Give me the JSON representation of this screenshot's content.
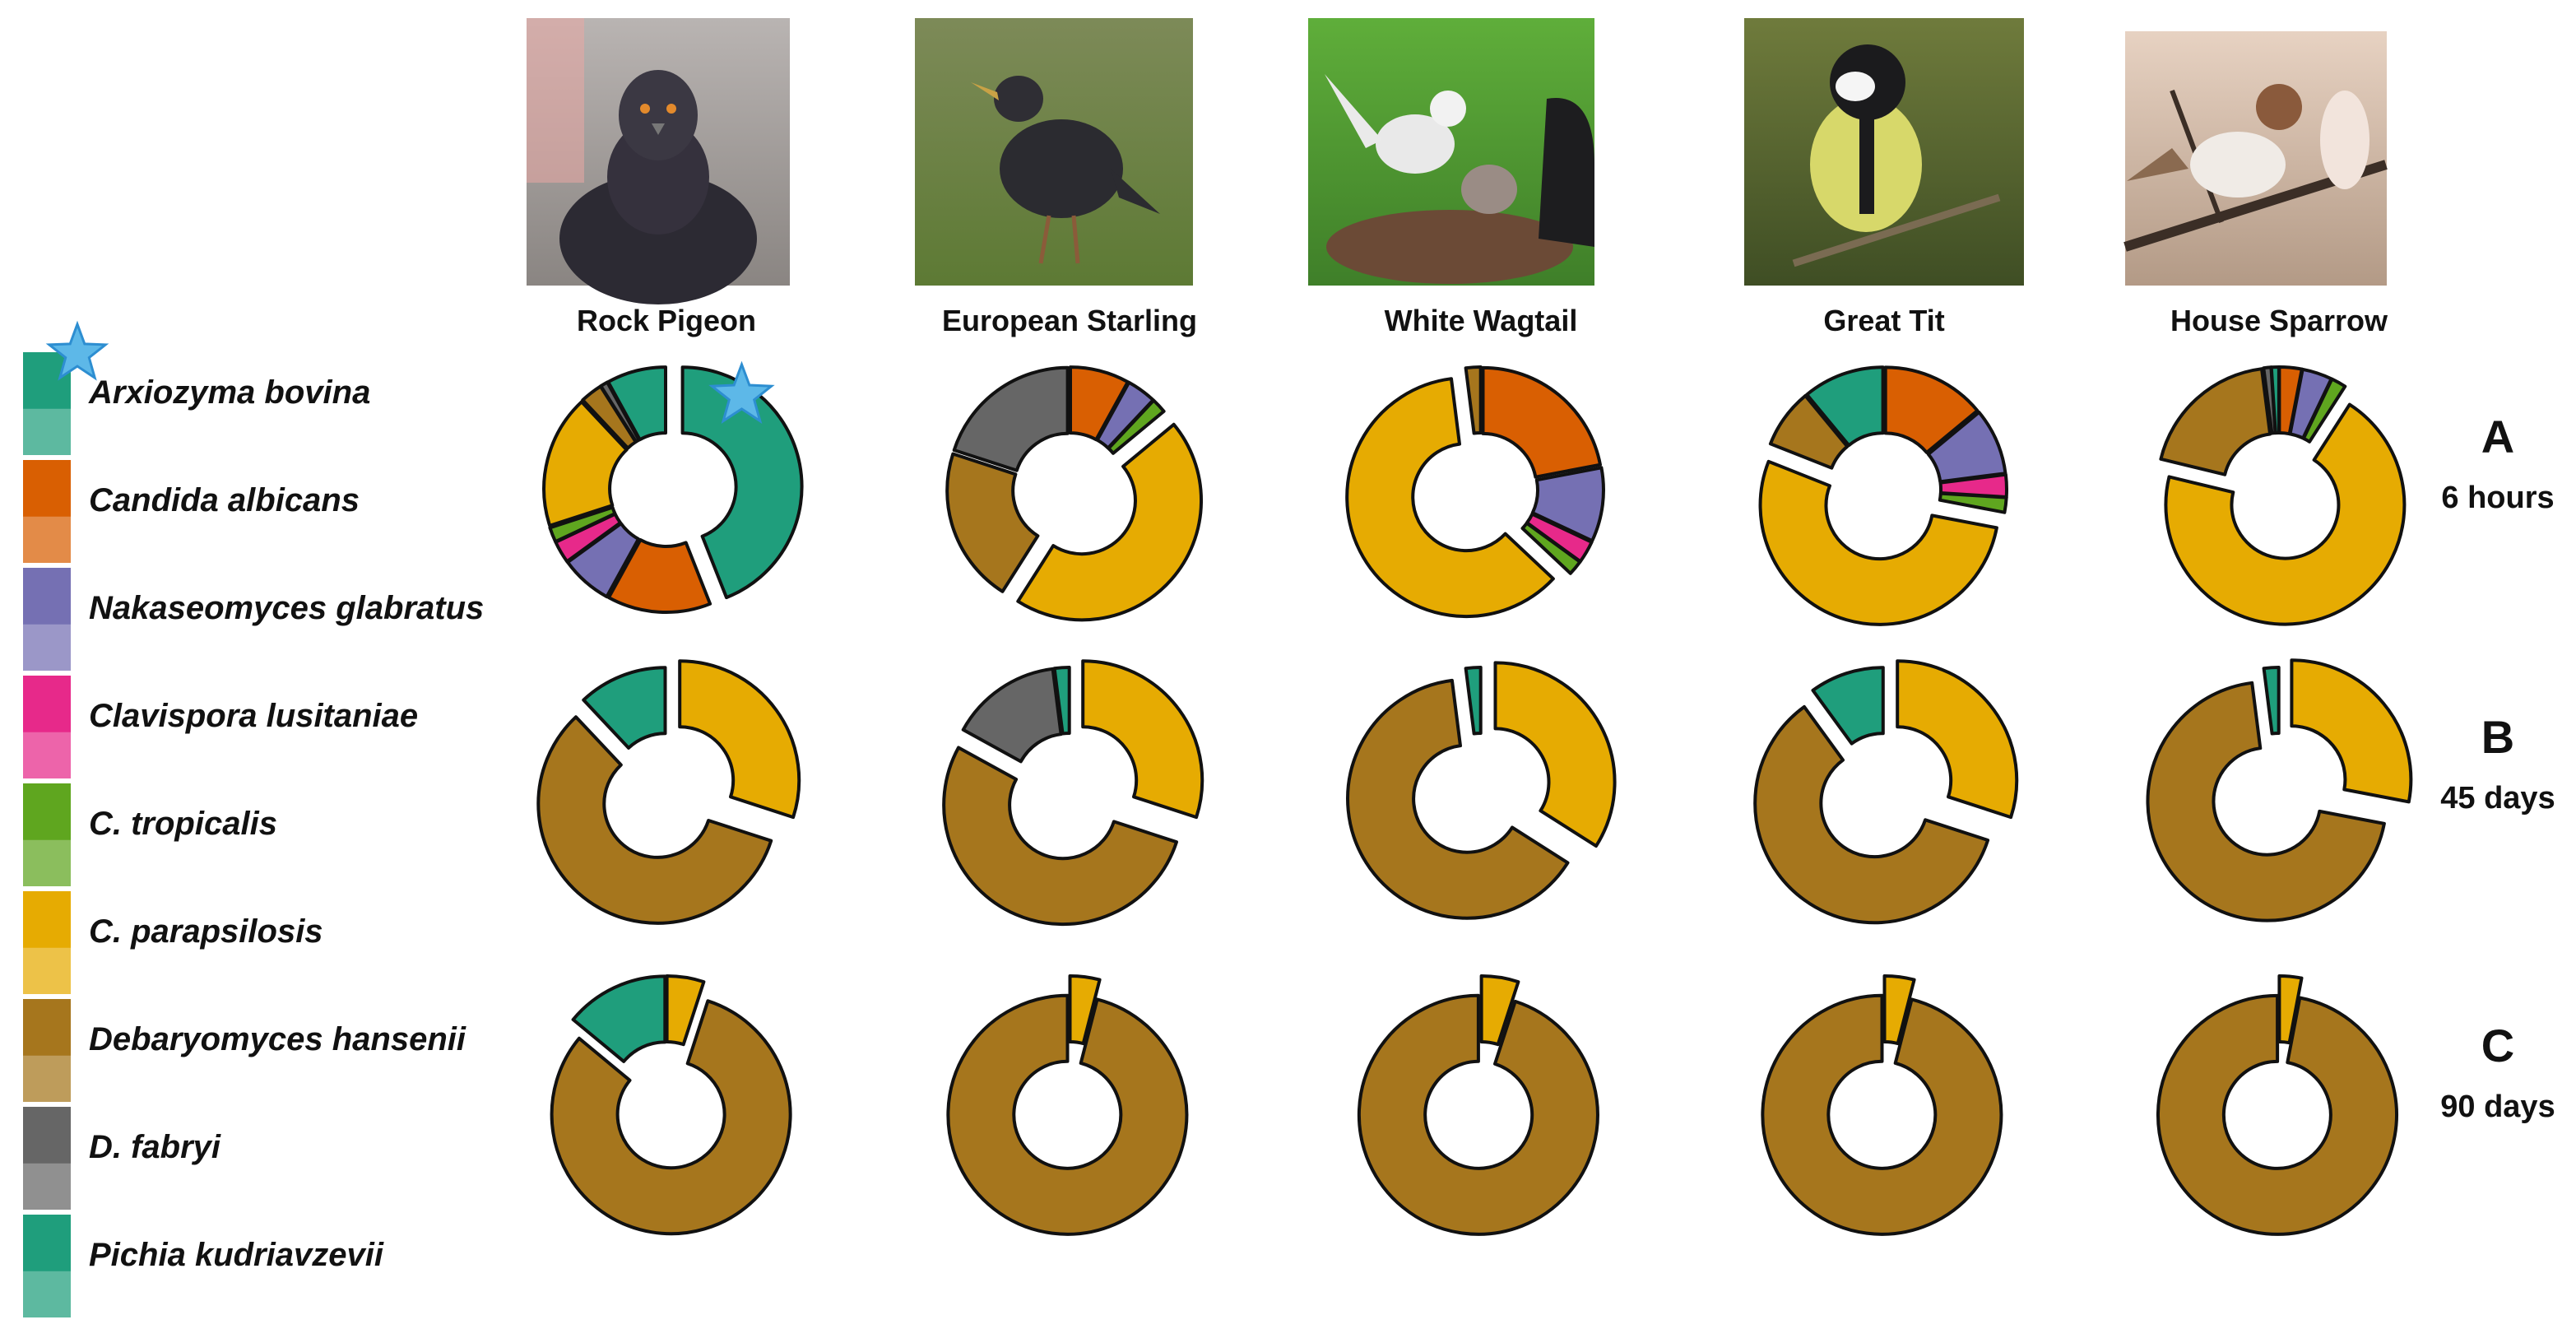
{
  "legend": [
    {
      "label": "Arxiozyma bovina",
      "color": "#1f9e7c",
      "starred": true
    },
    {
      "label": "Candida albicans",
      "color": "#d95f02"
    },
    {
      "label": "Nakaseomyces glabratus",
      "color": "#7570b3"
    },
    {
      "label": "Clavispora lusitaniae",
      "color": "#e7298a"
    },
    {
      "label": "C. tropicalis",
      "color": "#5fa61f"
    },
    {
      "label": "C. parapsilosis",
      "color": "#e6ab02"
    },
    {
      "label": "Debaryomyces hansenii",
      "color": "#a6761d"
    },
    {
      "label": "D. fabryi",
      "color": "#666666"
    },
    {
      "label": "Pichia kudriavzevii",
      "color": "#1f9e7c"
    }
  ],
  "birds": [
    {
      "name": "Rock Pigeon",
      "icon": "rock-pigeon-photo"
    },
    {
      "name": "European Starling",
      "icon": "european-starling-photo"
    },
    {
      "name": "White Wagtail",
      "icon": "white-wagtail-photo"
    },
    {
      "name": "Great Tit",
      "icon": "great-tit-photo"
    },
    {
      "name": "House Sparrow",
      "icon": "house-sparrow-photo"
    }
  ],
  "rows": [
    {
      "letter": "A",
      "time": "6 hours"
    },
    {
      "letter": "B",
      "time": "45 days"
    },
    {
      "letter": "C",
      "time": "90 days"
    }
  ],
  "chart_data": {
    "type": "pie",
    "variant": "exploded donut",
    "units": "percent of isolates",
    "series_order": [
      "Arxiozyma bovina",
      "Candida albicans",
      "Nakaseomyces glabratus",
      "Clavispora lusitaniae",
      "C. tropicalis",
      "C. parapsilosis",
      "Debaryomyces hansenii",
      "D. fabryi",
      "Pichia kudriavzevii"
    ],
    "panels": [
      {
        "row": "A",
        "bird": "Rock Pigeon",
        "slices": [
          {
            "species": "Arxiozyma bovina",
            "value": 44,
            "starred": true
          },
          {
            "species": "Candida albicans",
            "value": 14
          },
          {
            "species": "Nakaseomyces glabratus",
            "value": 7
          },
          {
            "species": "Clavispora lusitaniae",
            "value": 3
          },
          {
            "species": "C. tropicalis",
            "value": 2
          },
          {
            "species": "C. parapsilosis",
            "value": 18
          },
          {
            "species": "Debaryomyces hansenii",
            "value": 3
          },
          {
            "species": "D. fabryi",
            "value": 1
          },
          {
            "species": "Pichia kudriavzevii",
            "value": 8
          }
        ]
      },
      {
        "row": "A",
        "bird": "European Starling",
        "slices": [
          {
            "species": "Candida albicans",
            "value": 8
          },
          {
            "species": "Nakaseomyces glabratus",
            "value": 4
          },
          {
            "species": "C. tropicalis",
            "value": 2
          },
          {
            "species": "C. parapsilosis",
            "value": 45
          },
          {
            "species": "Debaryomyces hansenii",
            "value": 21
          },
          {
            "species": "D. fabryi",
            "value": 20
          }
        ]
      },
      {
        "row": "A",
        "bird": "White Wagtail",
        "slices": [
          {
            "species": "Candida albicans",
            "value": 22
          },
          {
            "species": "Nakaseomyces glabratus",
            "value": 10
          },
          {
            "species": "Clavispora lusitaniae",
            "value": 3
          },
          {
            "species": "C. tropicalis",
            "value": 2
          },
          {
            "species": "C. parapsilosis",
            "value": 61
          },
          {
            "species": "Debaryomyces hansenii",
            "value": 2
          }
        ]
      },
      {
        "row": "A",
        "bird": "Great Tit",
        "slices": [
          {
            "species": "Candida albicans",
            "value": 14
          },
          {
            "species": "Nakaseomyces glabratus",
            "value": 9
          },
          {
            "species": "Clavispora lusitaniae",
            "value": 3
          },
          {
            "species": "C. tropicalis",
            "value": 2
          },
          {
            "species": "C. parapsilosis",
            "value": 53
          },
          {
            "species": "Debaryomyces hansenii",
            "value": 8
          },
          {
            "species": "Pichia kudriavzevii",
            "value": 11
          }
        ]
      },
      {
        "row": "A",
        "bird": "House Sparrow",
        "slices": [
          {
            "species": "Candida albicans",
            "value": 3
          },
          {
            "species": "Nakaseomyces glabratus",
            "value": 4
          },
          {
            "species": "C. tropicalis",
            "value": 2
          },
          {
            "species": "C. parapsilosis",
            "value": 69
          },
          {
            "species": "Debaryomyces hansenii",
            "value": 19
          },
          {
            "species": "D. fabryi",
            "value": 1
          },
          {
            "species": "Pichia kudriavzevii",
            "value": 1
          }
        ]
      },
      {
        "row": "B",
        "bird": "Rock Pigeon",
        "slices": [
          {
            "species": "C. parapsilosis",
            "value": 30
          },
          {
            "species": "Debaryomyces hansenii",
            "value": 58
          },
          {
            "species": "Pichia kudriavzevii",
            "value": 12
          }
        ]
      },
      {
        "row": "B",
        "bird": "European Starling",
        "slices": [
          {
            "species": "C. parapsilosis",
            "value": 30
          },
          {
            "species": "Debaryomyces hansenii",
            "value": 53
          },
          {
            "species": "D. fabryi",
            "value": 15
          },
          {
            "species": "Pichia kudriavzevii",
            "value": 2
          }
        ]
      },
      {
        "row": "B",
        "bird": "White Wagtail",
        "slices": [
          {
            "species": "C. parapsilosis",
            "value": 34
          },
          {
            "species": "Debaryomyces hansenii",
            "value": 64
          },
          {
            "species": "Pichia kudriavzevii",
            "value": 2
          }
        ]
      },
      {
        "row": "B",
        "bird": "Great Tit",
        "slices": [
          {
            "species": "C. parapsilosis",
            "value": 30
          },
          {
            "species": "Debaryomyces hansenii",
            "value": 60
          },
          {
            "species": "Pichia kudriavzevii",
            "value": 10
          }
        ]
      },
      {
        "row": "B",
        "bird": "House Sparrow",
        "slices": [
          {
            "species": "C. parapsilosis",
            "value": 28
          },
          {
            "species": "Debaryomyces hansenii",
            "value": 70
          },
          {
            "species": "Pichia kudriavzevii",
            "value": 2
          }
        ]
      },
      {
        "row": "C",
        "bird": "Rock Pigeon",
        "slices": [
          {
            "species": "C. parapsilosis",
            "value": 5
          },
          {
            "species": "Debaryomyces hansenii",
            "value": 81
          },
          {
            "species": "Pichia kudriavzevii",
            "value": 14
          }
        ]
      },
      {
        "row": "C",
        "bird": "European Starling",
        "slices": [
          {
            "species": "C. parapsilosis",
            "value": 4
          },
          {
            "species": "Debaryomyces hansenii",
            "value": 96
          }
        ]
      },
      {
        "row": "C",
        "bird": "White Wagtail",
        "slices": [
          {
            "species": "C. parapsilosis",
            "value": 5
          },
          {
            "species": "Debaryomyces hansenii",
            "value": 95
          }
        ]
      },
      {
        "row": "C",
        "bird": "Great Tit",
        "slices": [
          {
            "species": "C. parapsilosis",
            "value": 4
          },
          {
            "species": "Debaryomyces hansenii",
            "value": 96
          }
        ]
      },
      {
        "row": "C",
        "bird": "House Sparrow",
        "slices": [
          {
            "species": "C. parapsilosis",
            "value": 3
          },
          {
            "species": "Debaryomyces hansenii",
            "value": 97
          }
        ]
      }
    ]
  }
}
